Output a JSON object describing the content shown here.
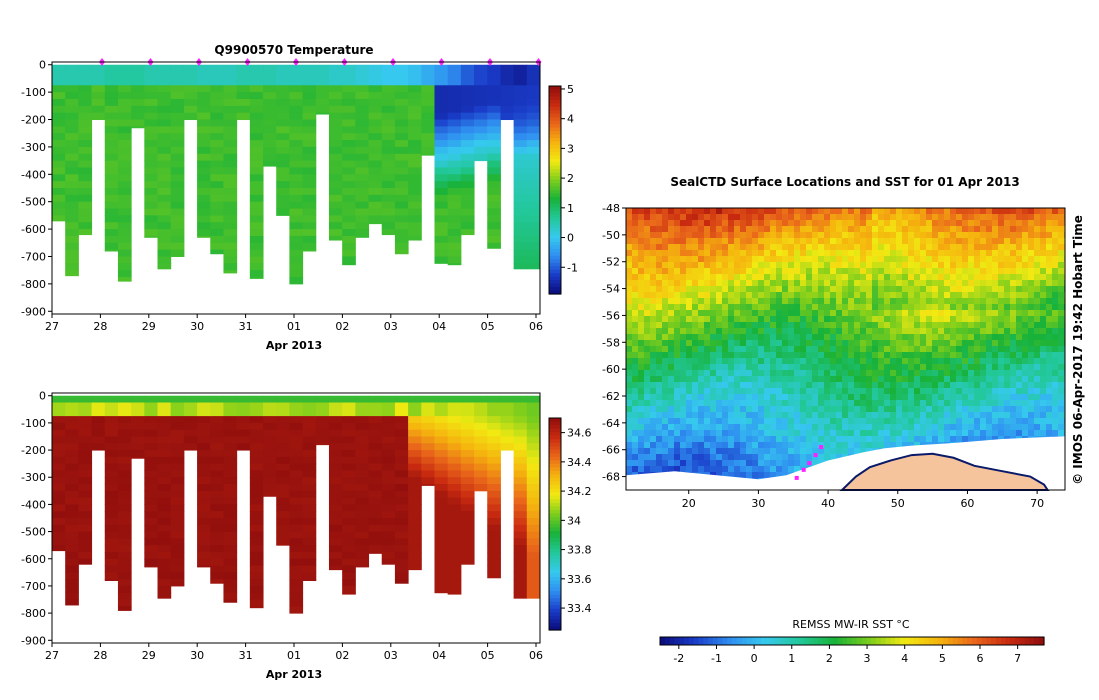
{
  "chart_data": [
    {
      "type": "heatmap",
      "title": "Q9900570  Temperature",
      "xlabel": "Apr 2013",
      "x_ticks": [
        "27",
        "28",
        "29",
        "30",
        "31",
        "01",
        "02",
        "03",
        "04",
        "05",
        "06"
      ],
      "y_ticks": [
        "0",
        "-100",
        "-200",
        "-300",
        "-400",
        "-500",
        "-600",
        "-700",
        "-800",
        "-900"
      ],
      "ylim": [
        -910,
        10
      ],
      "colorbar_ticks": [
        "5",
        "4",
        "3",
        "2",
        "1",
        "0",
        "-1"
      ],
      "colorbar_range": [
        -1.9,
        5.1
      ],
      "profile_max_depth": [
        570,
        770,
        620,
        200,
        680,
        790,
        230,
        630,
        745,
        700,
        200,
        630,
        690,
        760,
        200,
        780,
        370,
        550,
        800,
        680,
        180,
        640,
        730,
        630,
        580,
        620,
        690,
        640,
        330,
        725,
        730,
        620,
        350,
        670,
        200,
        745,
        745
      ],
      "surface_temp": [
        0.5,
        0.5,
        0.5,
        0.5,
        0.6,
        0.6,
        0.6,
        0.5,
        0.5,
        0.5,
        0.5,
        0.4,
        0.4,
        0.4,
        0.5,
        0.5,
        0.5,
        0.4,
        0.4,
        0.4,
        0.4,
        0.3,
        0.3,
        0.2,
        0.1,
        0.0,
        0.0,
        -0.1,
        -0.3,
        -0.5,
        -0.7,
        -1.0,
        -1.2,
        -1.3,
        -1.5,
        -1.6,
        -1.4
      ],
      "sampling_markers": 10
    },
    {
      "type": "heatmap",
      "title": "",
      "xlabel": "Apr 2013",
      "x_ticks": [
        "27",
        "28",
        "29",
        "30",
        "31",
        "01",
        "02",
        "03",
        "04",
        "05",
        "06"
      ],
      "y_ticks": [
        "0",
        "-100",
        "-200",
        "-300",
        "-400",
        "-500",
        "-600",
        "-700",
        "-800",
        "-900"
      ],
      "ylim": [
        -910,
        10
      ],
      "colorbar_ticks": [
        "34.6",
        "34.4",
        "34.2",
        "34",
        "33.8",
        "33.6",
        "33.4"
      ],
      "colorbar_range": [
        33.25,
        34.7
      ],
      "profile_max_depth": [
        570,
        770,
        620,
        200,
        680,
        790,
        230,
        630,
        745,
        700,
        200,
        630,
        690,
        760,
        200,
        780,
        370,
        550,
        800,
        680,
        180,
        640,
        730,
        630,
        580,
        620,
        690,
        640,
        330,
        725,
        730,
        620,
        350,
        670,
        200,
        745,
        745
      ]
    },
    {
      "type": "map",
      "title": "SealCTD Surface Locations and SST for 01 Apr 2013",
      "x_ticks": [
        "20",
        "30",
        "40",
        "50",
        "60",
        "70"
      ],
      "y_ticks": [
        "-48",
        "-50",
        "-52",
        "-54",
        "-56",
        "-58",
        "-60",
        "-62",
        "-64",
        "-66",
        "-68"
      ],
      "lon_range": [
        11,
        74
      ],
      "lat_range": [
        -69,
        -48
      ],
      "sst_north": 6.2,
      "sst_south": -1.2,
      "track_lon": [
        35.5,
        36.5,
        37.3,
        38.2,
        39.0
      ],
      "track_lat": [
        -68.1,
        -67.5,
        -67.0,
        -66.4,
        -65.8
      ],
      "credit": "© IMOS 06-Apr-2017 19:42 Hobart Time",
      "colorbar_label": "REMSS MW-IR SST °C",
      "colorbar_ticks": [
        "-2",
        "-1",
        "0",
        "1",
        "2",
        "3",
        "4",
        "5",
        "6",
        "7"
      ],
      "colorbar_range": [
        -2.5,
        7.7
      ]
    }
  ],
  "palette": {
    "stops": [
      "#0b0b7a",
      "#1a3cc8",
      "#2f8ef0",
      "#36c9ee",
      "#22c89a",
      "#18b23a",
      "#7ccd1c",
      "#f2ea12",
      "#f5b40e",
      "#e9661a",
      "#c82a10",
      "#8e0d0d"
    ],
    "land": "#f5c49c",
    "ice": "#ffffff",
    "track": "#ff20ff"
  }
}
